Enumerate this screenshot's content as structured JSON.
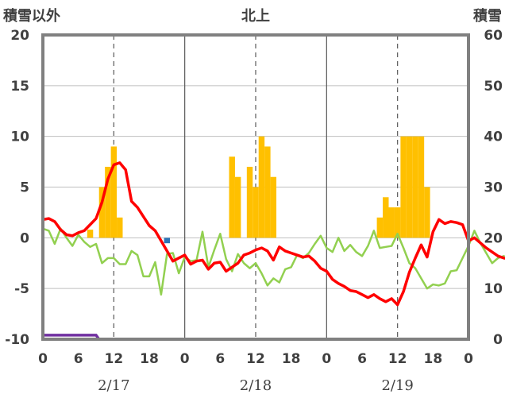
{
  "chart_data": {
    "type": "bar+line",
    "title": "北上",
    "left_axis_label": "積雪以外",
    "right_axis_label": "積雪",
    "left_ylim": [
      -10,
      20
    ],
    "left_yticks": [
      "20",
      "15",
      "10",
      "5",
      "0",
      "-5",
      "-10"
    ],
    "right_ylim": [
      0,
      60
    ],
    "right_yticks": [
      "60",
      "50",
      "40",
      "30",
      "20",
      "10",
      "0"
    ],
    "x_tick_labels": [
      "0",
      "6",
      "12",
      "18",
      "0",
      "6",
      "12",
      "18",
      "0",
      "6",
      "12",
      "18",
      "0"
    ],
    "date_labels": [
      "2/17",
      "2/18",
      "2/19"
    ],
    "colors": {
      "bars": "#FFC000",
      "temperature": "#FF0000",
      "green_series": "#92D050",
      "purple_series": "#7030A0",
      "blue_marker": "#2E75B6",
      "frame": "#808080"
    },
    "bars": {
      "hour": [
        8,
        10,
        11,
        12,
        13,
        32,
        33,
        35,
        36,
        37,
        38,
        39,
        57,
        58,
        59,
        60,
        61,
        62,
        63,
        64,
        65
      ],
      "value": [
        0.8,
        5,
        7,
        9,
        2,
        8,
        6,
        7,
        5,
        10,
        9,
        6,
        2,
        4,
        3,
        3,
        10,
        10,
        10,
        10,
        5
      ]
    },
    "blue_marker": {
      "hour": 21,
      "value": -0.3
    },
    "temperature_series": [
      1.8,
      1.9,
      1.6,
      0.8,
      0.3,
      0.2,
      0.5,
      0.7,
      1.3,
      1.9,
      3.5,
      5.8,
      7.2,
      7.4,
      6.7,
      3.6,
      3.0,
      2.1,
      1.2,
      0.7,
      -0.3,
      -1.3,
      -2.3,
      -2.0,
      -1.7,
      -2.6,
      -2.3,
      -2.2,
      -3.1,
      -2.5,
      -2.4,
      -3.3,
      -2.9,
      -2.5,
      -1.7,
      -1.5,
      -1.2,
      -1.0,
      -1.3,
      -2.2,
      -0.9,
      -1.3,
      -1.5,
      -1.7,
      -1.9,
      -1.8,
      -2.3,
      -3.0,
      -3.3,
      -4.1,
      -4.5,
      -4.8,
      -5.2,
      -5.3,
      -5.6,
      -5.9,
      -5.6,
      -6.0,
      -6.3,
      -6.0,
      -6.6,
      -5.3,
      -3.4,
      -2.0,
      -0.7,
      -1.9,
      0.6,
      1.8,
      1.4,
      1.6,
      1.5,
      1.3,
      -0.3,
      0.0,
      -0.5,
      -1.0,
      -1.4,
      -1.8,
      -2.0,
      -2.1
    ],
    "green_series": [
      0.9,
      0.7,
      -0.6,
      0.9,
      0.0,
      -0.8,
      0.3,
      -0.4,
      -0.9,
      -0.6,
      -2.5,
      -2.0,
      -2.0,
      -2.6,
      -2.6,
      -1.3,
      -1.7,
      -3.8,
      -3.8,
      -2.4,
      -5.6,
      -1.6,
      -1.5,
      -3.5,
      -1.9,
      -2.3,
      -2.2,
      0.6,
      -2.9,
      -1.2,
      0.4,
      -2.1,
      -3.3,
      -1.6,
      -2.5,
      -3.0,
      -2.5,
      -3.5,
      -4.7,
      -4.0,
      -4.4,
      -3.1,
      -2.9,
      -1.7,
      -2.0,
      -1.5,
      -0.6,
      0.2,
      -1.0,
      -1.4,
      0.0,
      -1.3,
      -0.7,
      -1.4,
      -1.8,
      -0.8,
      0.7,
      -1.0,
      -0.9,
      -0.8,
      0.4,
      -1.0,
      -2.5,
      -3.0,
      -4.0,
      -5.0,
      -4.6,
      -4.7,
      -4.5,
      -3.3,
      -3.2,
      -2.0,
      -0.8,
      0.7,
      -0.5,
      -1.5,
      -2.5,
      -2.0,
      -1.8
    ],
    "purple_series": {
      "start_hour": 0,
      "level_until_hour": 9,
      "level": -9.6,
      "then": -10.0,
      "end_hour": 72
    }
  }
}
